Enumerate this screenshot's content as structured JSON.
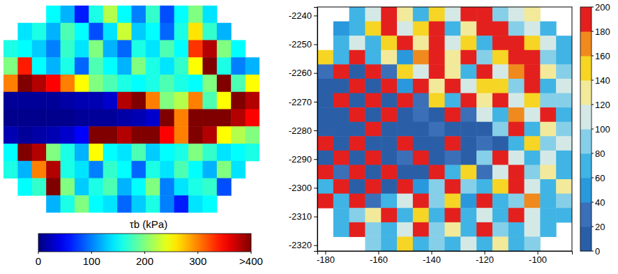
{
  "chart_data": [
    {
      "type": "heatmap",
      "tick_labels": false,
      "color": "jet",
      "cells": [
        [
          null,
          null,
          null,
          150,
          120,
          60,
          160,
          220,
          150,
          100,
          170,
          80,
          150,
          200,
          140,
          null,
          null,
          null
        ],
        [
          null,
          140,
          160,
          120,
          180,
          150,
          80,
          140,
          230,
          130,
          150,
          90,
          160,
          260,
          170,
          120,
          null,
          null
        ],
        [
          160,
          150,
          130,
          100,
          170,
          140,
          200,
          120,
          90,
          160,
          140,
          180,
          150,
          330,
          380,
          200,
          150,
          null
        ],
        [
          200,
          340,
          150,
          120,
          160,
          90,
          180,
          150,
          120,
          200,
          160,
          140,
          170,
          250,
          400,
          160,
          100,
          120
        ],
        [
          300,
          400,
          380,
          350,
          300,
          250,
          200,
          180,
          160,
          150,
          160,
          180,
          160,
          150,
          200,
          400,
          180,
          250
        ],
        [
          10,
          10,
          10,
          10,
          15,
          20,
          20,
          30,
          380,
          400,
          300,
          200,
          220,
          300,
          180,
          250,
          400,
          380
        ],
        [
          5,
          5,
          5,
          5,
          5,
          10,
          10,
          10,
          15,
          20,
          30,
          400,
          300,
          400,
          400,
          400,
          380,
          350
        ],
        [
          20,
          10,
          15,
          20,
          30,
          50,
          400,
          400,
          380,
          400,
          400,
          350,
          300,
          400,
          380,
          250,
          220,
          200
        ],
        [
          150,
          400,
          380,
          200,
          160,
          120,
          250,
          150,
          140,
          180,
          130,
          150,
          160,
          200,
          170,
          140,
          150,
          160
        ],
        [
          160,
          120,
          300,
          380,
          160,
          140,
          100,
          170,
          150,
          90,
          160,
          140,
          180,
          150,
          120,
          200,
          140,
          null
        ],
        [
          null,
          150,
          170,
          400,
          200,
          130,
          160,
          180,
          120,
          150,
          200,
          100,
          140,
          160,
          170,
          80,
          null,
          null
        ],
        [
          null,
          null,
          null,
          120,
          160,
          200,
          150,
          140,
          90,
          130,
          160,
          100,
          60,
          140,
          150,
          null,
          null,
          null
        ]
      ],
      "colorbar": {
        "title": "τb (kPa)",
        "range": [
          0,
          400
        ],
        "ticks": [
          0,
          100,
          200,
          300,
          {
            "value": 400,
            "label": ">400"
          }
        ]
      }
    },
    {
      "type": "heatmap",
      "x": [
        -180,
        -174,
        -168,
        -162,
        -156,
        -150,
        -144,
        -138,
        -132,
        -126,
        -120,
        -114,
        -108,
        -102,
        -96,
        -90
      ],
      "y": [
        -2239.5,
        -2244.5,
        -2249.5,
        -2254.5,
        -2259.5,
        -2264.5,
        -2269.5,
        -2274.5,
        -2279.5,
        -2284.5,
        -2289.5,
        -2294.5,
        -2299.5,
        -2304.5,
        -2309.5,
        -2314.5,
        -2319.5
      ],
      "xlim": [
        -183,
        -87
      ],
      "ylim": [
        -2322,
        -2237
      ],
      "xticks": [
        -180,
        -160,
        -140,
        -120,
        -100
      ],
      "yticks": [
        -2320,
        -2310,
        -2300,
        -2290,
        -2280,
        -2270,
        -2260,
        -2250,
        -2240
      ],
      "cells": [
        [
          null,
          null,
          60,
          100,
          190,
          130,
          70,
          150,
          110,
          190,
          200,
          80,
          100,
          120,
          null,
          null
        ],
        [
          null,
          50,
          70,
          140,
          200,
          100,
          150,
          190,
          60,
          120,
          200,
          190,
          90,
          110,
          70,
          null
        ],
        [
          null,
          70,
          110,
          60,
          150,
          190,
          120,
          200,
          100,
          150,
          70,
          200,
          200,
          140,
          100,
          60
        ],
        [
          140,
          60,
          190,
          70,
          120,
          50,
          160,
          190,
          120,
          200,
          80,
          150,
          200,
          190,
          90,
          70
        ],
        [
          20,
          200,
          10,
          190,
          30,
          150,
          100,
          200,
          130,
          60,
          190,
          100,
          170,
          200,
          120,
          80
        ],
        [
          10,
          15,
          200,
          10,
          190,
          40,
          200,
          120,
          190,
          100,
          150,
          140,
          90,
          190,
          60,
          110
        ],
        [
          5,
          200,
          10,
          190,
          10,
          200,
          20,
          150,
          60,
          200,
          130,
          190,
          110,
          150,
          80,
          90
        ],
        [
          5,
          10,
          200,
          5,
          190,
          10,
          30,
          15,
          200,
          20,
          100,
          60,
          160,
          100,
          190,
          60
        ],
        [
          10,
          5,
          10,
          200,
          5,
          10,
          5,
          20,
          10,
          5,
          15,
          80,
          190,
          60,
          120,
          80
        ],
        [
          190,
          10,
          200,
          10,
          15,
          200,
          5,
          10,
          190,
          10,
          20,
          10,
          60,
          150,
          80,
          100
        ],
        [
          10,
          200,
          10,
          190,
          10,
          20,
          200,
          10,
          20,
          15,
          80,
          200,
          100,
          60,
          110,
          70
        ],
        [
          200,
          20,
          190,
          10,
          200,
          10,
          15,
          190,
          60,
          150,
          20,
          100,
          190,
          80,
          130,
          60
        ],
        [
          60,
          190,
          10,
          200,
          15,
          190,
          40,
          80,
          200,
          90,
          60,
          150,
          200,
          100,
          70,
          120
        ],
        [
          190,
          60,
          200,
          20,
          70,
          100,
          200,
          80,
          150,
          50,
          190,
          60,
          80,
          160,
          60,
          80
        ],
        [
          null,
          70,
          80,
          120,
          190,
          60,
          150,
          70,
          200,
          60,
          100,
          70,
          200,
          100,
          60,
          70
        ],
        [
          null,
          60,
          190,
          80,
          60,
          100,
          200,
          80,
          120,
          60,
          190,
          80,
          60,
          100,
          70,
          null
        ],
        [
          null,
          null,
          null,
          80,
          60,
          140,
          70,
          90,
          60,
          100,
          70,
          130,
          60,
          80,
          null,
          null
        ]
      ],
      "colorbar": {
        "range": [
          0,
          200
        ],
        "ticks": [
          0,
          20,
          40,
          60,
          80,
          100,
          120,
          140,
          160,
          180,
          200
        ],
        "colors": [
          "#2a5fa8",
          "#3b6fb8",
          "#2a98dc",
          "#40b4e4",
          "#86cfe8",
          "#d4e9e6",
          "#f2ea9a",
          "#f6d524",
          "#f08a1e",
          "#e4201e"
        ]
      }
    }
  ]
}
